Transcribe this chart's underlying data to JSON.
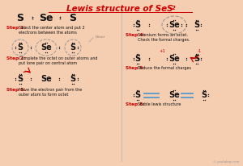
{
  "title1": "Lewis structure of SeS",
  "title_sub": "2",
  "title_color": "#cc0000",
  "bg_color": "#f5cdb0",
  "divider_color": "#ccbbaa",
  "red_color": "#cc0000",
  "blue_color": "#5599cc",
  "dot_color": "#111111",
  "text_color": "#111111",
  "step_label_color": "#cc0000",
  "octet_label": "Octet",
  "copyright": "© pediabay.com",
  "step1_text": "Select the center atom and put 2\nelectrons between the atoms",
  "step2_text": "Complete the octet on outer atoms and\nput lone pair on central atom",
  "step3_text": "Move the electron pair from the\nouter atom to form octet",
  "step4_text": "Selenium forms an octet.\nCheck the formal charges.",
  "step5_text": "Reduce the formal charges",
  "step6_text": "Stable lewis structure"
}
